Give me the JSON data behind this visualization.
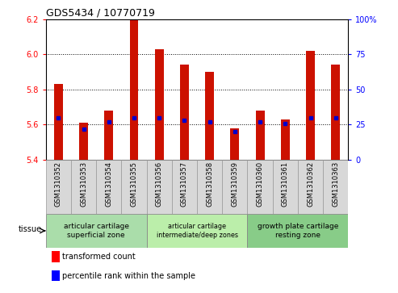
{
  "title": "GDS5434 / 10770719",
  "samples": [
    "GSM1310352",
    "GSM1310353",
    "GSM1310354",
    "GSM1310355",
    "GSM1310356",
    "GSM1310357",
    "GSM1310358",
    "GSM1310359",
    "GSM1310360",
    "GSM1310361",
    "GSM1310362",
    "GSM1310363"
  ],
  "transformed_counts": [
    5.83,
    5.61,
    5.68,
    6.2,
    6.03,
    5.94,
    5.9,
    5.58,
    5.68,
    5.63,
    6.02,
    5.94
  ],
  "percentile_ranks": [
    30,
    22,
    27,
    30,
    30,
    28,
    27,
    20,
    27,
    26,
    30,
    30
  ],
  "ylim_left": [
    5.4,
    6.2
  ],
  "ylim_right": [
    0,
    100
  ],
  "yticks_left": [
    5.4,
    5.6,
    5.8,
    6.0,
    6.2
  ],
  "yticks_right": [
    0,
    25,
    50,
    75,
    100
  ],
  "bar_color": "#cc1100",
  "dot_color": "#0000cc",
  "tissue_groups": [
    {
      "label": "articular cartilage\nsuperficial zone",
      "start": 0,
      "end": 3
    },
    {
      "label": "articular cartilage\nintermediate/deep zones",
      "start": 4,
      "end": 7
    },
    {
      "label": "growth plate cartilage\nresting zone",
      "start": 8,
      "end": 11
    }
  ],
  "group_colors": [
    "#aaddaa",
    "#bbeeaa",
    "#88cc88"
  ],
  "legend_red": "transformed count",
  "legend_blue": "percentile rank within the sample",
  "bar_width": 0.35,
  "base_value": 5.4
}
